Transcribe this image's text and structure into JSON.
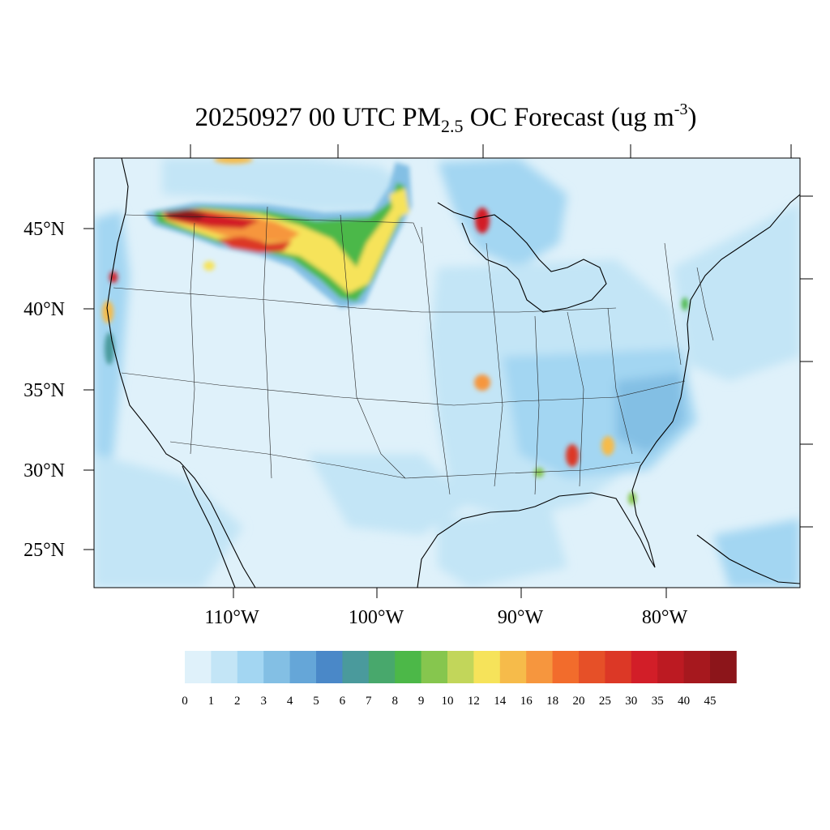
{
  "title": {
    "prefix": "20250927 00 UTC PM",
    "subscript": "2.5",
    "middle": " OC Forecast (ug m",
    "superscript": "-3",
    "suffix": ")"
  },
  "axes": {
    "lat_labels": [
      "45°N",
      "40°N",
      "35°N",
      "30°N",
      "25°N"
    ],
    "lon_labels": [
      "110°W",
      "100°W",
      "90°W",
      "80°W"
    ]
  },
  "colorbar": {
    "labels": [
      "0",
      "1",
      "2",
      "3",
      "4",
      "5",
      "6",
      "7",
      "8",
      "9",
      "10",
      "12",
      "14",
      "16",
      "18",
      "20",
      "25",
      "30",
      "35",
      "40",
      "45"
    ],
    "colors": [
      "#dff1fa",
      "#c3e5f6",
      "#a3d6f2",
      "#83bfe4",
      "#65a6d8",
      "#4a88c8",
      "#4a9a9c",
      "#48a86c",
      "#4cb848",
      "#86c64e",
      "#c2d65a",
      "#f6e35a",
      "#f6bb4a",
      "#f6963e",
      "#f26c2c",
      "#e65028",
      "#dc3826",
      "#d21e28",
      "#bc1a22",
      "#a6181e",
      "#8c151a"
    ]
  },
  "map": {
    "region": "Continental United States",
    "ocean_color": "#dff1fa",
    "land_color": "#dff1fa",
    "plume_colors": {
      "light": "#c3e5f6",
      "medium": "#83bfe4",
      "green": "#4cb848",
      "yellow": "#f6e35a",
      "orange": "#f6963e",
      "red": "#d21e28",
      "dark_red": "#8c151a"
    }
  }
}
